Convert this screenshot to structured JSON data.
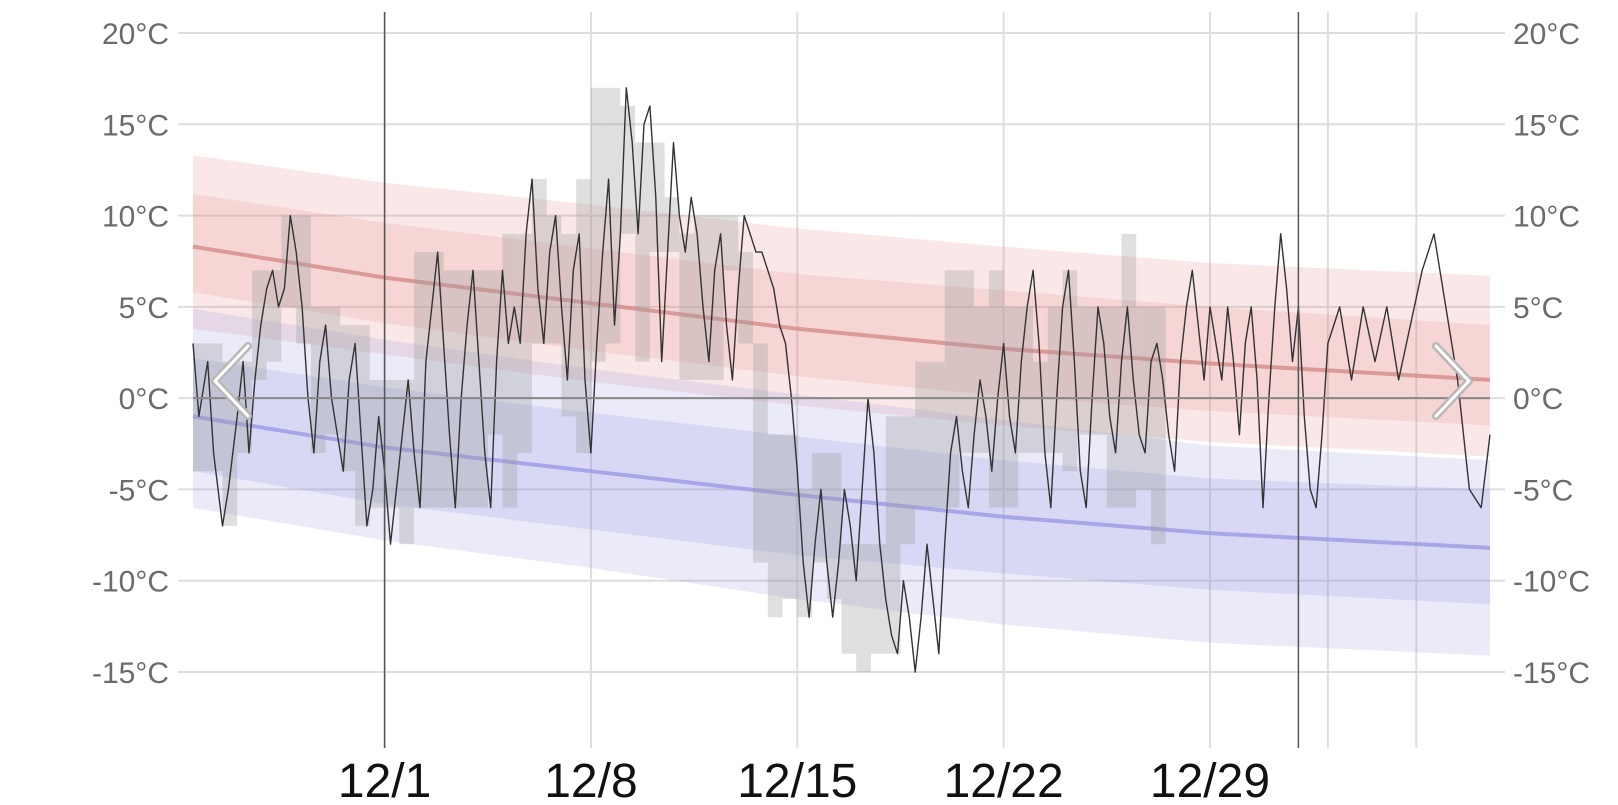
{
  "chart_data": {
    "type": "area",
    "title": "",
    "xlabel": "",
    "ylabel": "",
    "ylim": [
      -20,
      20
    ],
    "x_tick_labels": [
      "12/1",
      "12/8",
      "12/15",
      "12/22",
      "12/29"
    ],
    "x_tick_days": [
      0,
      7,
      14,
      21,
      28
    ],
    "x_range_days": [
      -6.5,
      37.5
    ],
    "y_ticks": [
      20,
      15,
      10,
      5,
      0,
      -5,
      -10,
      -15
    ],
    "y_tick_labels_left": [
      "20°C",
      "15°C",
      "10°C",
      "5°C",
      "0°C",
      "-5°C",
      "-10°C",
      "-15°C"
    ],
    "y_tick_labels_right": [
      "20°C",
      "15°C",
      "10°C",
      "5°C",
      "0°C",
      "-5°C",
      "-10°C",
      "-15°C"
    ],
    "grid": true,
    "colors": {
      "high_band": "#e57d7d",
      "high_mean": "#d68a8a",
      "low_band": "#8a8ae0",
      "low_mean": "#9a9ae6",
      "daily_range": "#9a9a9a",
      "temperature_line": "#333333",
      "axis_zero": "#888888",
      "grid": "#dddddd"
    },
    "normal_high": {
      "mean": [
        [
          -6.5,
          8.3
        ],
        [
          0,
          6.6
        ],
        [
          7,
          5.2
        ],
        [
          14,
          3.8
        ],
        [
          21,
          2.7
        ],
        [
          28,
          1.9
        ],
        [
          37.5,
          1.0
        ]
      ],
      "outer_upper": [
        [
          -6.5,
          13.3
        ],
        [
          0,
          11.8
        ],
        [
          7,
          10.6
        ],
        [
          14,
          9.3
        ],
        [
          21,
          8.3
        ],
        [
          28,
          7.4
        ],
        [
          37.5,
          6.7
        ]
      ],
      "outer_lower": [
        [
          -6.5,
          3.8
        ],
        [
          0,
          2.4
        ],
        [
          7,
          0.9
        ],
        [
          14,
          -0.4
        ],
        [
          21,
          -1.5
        ],
        [
          28,
          -2.4
        ],
        [
          37.5,
          -3.2
        ]
      ],
      "inner_upper": [
        [
          -6.5,
          11.2
        ],
        [
          0,
          9.6
        ],
        [
          7,
          8.2
        ],
        [
          14,
          6.8
        ],
        [
          21,
          5.9
        ],
        [
          28,
          5.0
        ],
        [
          37.5,
          4.0
        ]
      ],
      "inner_lower": [
        [
          -6.5,
          5.8
        ],
        [
          0,
          4.1
        ],
        [
          7,
          2.6
        ],
        [
          14,
          1.2
        ],
        [
          21,
          0.1
        ],
        [
          28,
          -0.7
        ],
        [
          37.5,
          -1.5
        ]
      ]
    },
    "normal_low": {
      "mean": [
        [
          -6.5,
          -1.0
        ],
        [
          0,
          -2.7
        ],
        [
          7,
          -4.0
        ],
        [
          14,
          -5.3
        ],
        [
          21,
          -6.5
        ],
        [
          28,
          -7.4
        ],
        [
          37.5,
          -8.2
        ]
      ],
      "outer_upper": [
        [
          -6.5,
          4.9
        ],
        [
          0,
          3.2
        ],
        [
          7,
          1.6
        ],
        [
          14,
          0.2
        ],
        [
          21,
          -1.2
        ],
        [
          28,
          -2.6
        ],
        [
          37.5,
          -3.4
        ]
      ],
      "outer_lower": [
        [
          -6.5,
          -6.0
        ],
        [
          0,
          -7.8
        ],
        [
          7,
          -9.3
        ],
        [
          14,
          -11.0
        ],
        [
          21,
          -12.4
        ],
        [
          28,
          -13.4
        ],
        [
          37.5,
          -14.1
        ]
      ],
      "inner_upper": [
        [
          -6.5,
          2.2
        ],
        [
          0,
          0.6
        ],
        [
          7,
          -0.8
        ],
        [
          14,
          -2.1
        ],
        [
          21,
          -3.4
        ],
        [
          28,
          -4.4
        ],
        [
          37.5,
          -5.0
        ]
      ],
      "inner_lower": [
        [
          -6.5,
          -4.0
        ],
        [
          0,
          -5.8
        ],
        [
          7,
          -7.2
        ],
        [
          14,
          -8.6
        ],
        [
          21,
          -9.6
        ],
        [
          28,
          -10.5
        ],
        [
          37.5,
          -11.3
        ]
      ]
    },
    "daily_range_blocks": [
      [
        -6.5,
        -5.5,
        -4,
        3
      ],
      [
        -5.5,
        -5.0,
        -7,
        2
      ],
      [
        -5.0,
        -4.5,
        -3,
        2
      ],
      [
        -4.5,
        -4.0,
        1,
        7
      ],
      [
        -4.0,
        -3.5,
        2,
        7
      ],
      [
        -3.5,
        -3.0,
        5,
        10
      ],
      [
        -3.0,
        -2.5,
        3,
        10
      ],
      [
        -2.5,
        -2.0,
        -3,
        5
      ],
      [
        -2.0,
        -1.5,
        -2,
        5
      ],
      [
        -1.5,
        -1.0,
        -4,
        4
      ],
      [
        -1.0,
        -0.5,
        -7,
        4
      ],
      [
        -0.5,
        0.5,
        -6,
        1
      ],
      [
        0.5,
        1.0,
        -8,
        1
      ],
      [
        1.0,
        2.0,
        -6,
        8
      ],
      [
        2.0,
        2.5,
        -6,
        7
      ],
      [
        2.5,
        3.5,
        -6,
        7
      ],
      [
        3.5,
        4.0,
        -2,
        7
      ],
      [
        4.0,
        4.5,
        -6,
        9
      ],
      [
        4.5,
        5.0,
        -3,
        9
      ],
      [
        5.0,
        5.5,
        3,
        12
      ],
      [
        5.5,
        6.0,
        3,
        10
      ],
      [
        6.0,
        6.5,
        -1,
        9
      ],
      [
        6.5,
        7.0,
        -3,
        12
      ],
      [
        7.0,
        7.5,
        2,
        17
      ],
      [
        7.5,
        8.0,
        3,
        17
      ],
      [
        8.0,
        8.5,
        9,
        16
      ],
      [
        8.5,
        9.0,
        2,
        14
      ],
      [
        9.0,
        9.5,
        8,
        14
      ],
      [
        9.5,
        10.0,
        8,
        11
      ],
      [
        10.0,
        10.5,
        1,
        9
      ],
      [
        10.5,
        11.0,
        1,
        10
      ],
      [
        11.0,
        11.5,
        1,
        10
      ],
      [
        11.5,
        12.0,
        7,
        10
      ],
      [
        12.0,
        12.5,
        3,
        8
      ],
      [
        12.5,
        13.0,
        -9,
        3
      ],
      [
        13.0,
        13.5,
        -12,
        -2
      ],
      [
        13.5,
        14.0,
        -11,
        -2
      ],
      [
        14.0,
        14.5,
        -12,
        -5
      ],
      [
        14.5,
        15.0,
        -9,
        -3
      ],
      [
        15.0,
        15.5,
        -11,
        -3
      ],
      [
        15.5,
        16.0,
        -14,
        -8
      ],
      [
        16.0,
        16.5,
        -15,
        -8
      ],
      [
        16.5,
        17.0,
        -14,
        -8
      ],
      [
        17.0,
        17.5,
        -14,
        -1
      ],
      [
        17.5,
        18.0,
        -8,
        -1
      ],
      [
        18.0,
        18.5,
        -6,
        2
      ],
      [
        18.5,
        19.0,
        -6,
        2
      ],
      [
        19.0,
        19.5,
        -6,
        7
      ],
      [
        19.5,
        20.0,
        -3,
        7
      ],
      [
        20.0,
        20.5,
        -3,
        5
      ],
      [
        20.5,
        21.0,
        -6,
        7
      ],
      [
        21.0,
        21.5,
        -6,
        5
      ],
      [
        21.5,
        22.0,
        -3,
        5
      ],
      [
        22.0,
        22.5,
        -3,
        2
      ],
      [
        22.5,
        23.0,
        -3,
        5
      ],
      [
        23.0,
        23.5,
        -4,
        7
      ],
      [
        23.5,
        24.0,
        -2,
        5
      ],
      [
        24.0,
        24.5,
        -2,
        5
      ],
      [
        24.5,
        25.0,
        -6,
        5
      ],
      [
        25.0,
        25.5,
        -6,
        9
      ],
      [
        25.5,
        26.0,
        -5,
        5
      ],
      [
        26.0,
        26.5,
        -8,
        5
      ]
    ],
    "temperature_series": [
      [
        -6.5,
        3
      ],
      [
        -6.3,
        -1
      ],
      [
        -6.0,
        2
      ],
      [
        -5.8,
        -3
      ],
      [
        -5.5,
        -7
      ],
      [
        -5.3,
        -5
      ],
      [
        -5.0,
        -1
      ],
      [
        -4.8,
        2
      ],
      [
        -4.6,
        -3
      ],
      [
        -4.4,
        1
      ],
      [
        -4.2,
        4
      ],
      [
        -4.0,
        6
      ],
      [
        -3.8,
        7
      ],
      [
        -3.6,
        5
      ],
      [
        -3.4,
        6
      ],
      [
        -3.2,
        10
      ],
      [
        -3.0,
        8
      ],
      [
        -2.8,
        5
      ],
      [
        -2.6,
        0
      ],
      [
        -2.4,
        -3
      ],
      [
        -2.2,
        2
      ],
      [
        -2.0,
        4
      ],
      [
        -1.8,
        0
      ],
      [
        -1.6,
        -2
      ],
      [
        -1.4,
        -4
      ],
      [
        -1.2,
        1
      ],
      [
        -1.0,
        3
      ],
      [
        -0.8,
        -2
      ],
      [
        -0.6,
        -7
      ],
      [
        -0.4,
        -5
      ],
      [
        -0.2,
        -1
      ],
      [
        0.0,
        -4
      ],
      [
        0.2,
        -8
      ],
      [
        0.4,
        -5
      ],
      [
        0.6,
        -2
      ],
      [
        0.8,
        1
      ],
      [
        1.0,
        -3
      ],
      [
        1.2,
        -6
      ],
      [
        1.4,
        2
      ],
      [
        1.6,
        5
      ],
      [
        1.8,
        8
      ],
      [
        2.0,
        3
      ],
      [
        2.2,
        -2
      ],
      [
        2.4,
        -6
      ],
      [
        2.6,
        0
      ],
      [
        2.8,
        4
      ],
      [
        3.0,
        7
      ],
      [
        3.2,
        2
      ],
      [
        3.4,
        -3
      ],
      [
        3.6,
        -6
      ],
      [
        3.8,
        2
      ],
      [
        4.0,
        7
      ],
      [
        4.2,
        3
      ],
      [
        4.4,
        5
      ],
      [
        4.6,
        3
      ],
      [
        4.8,
        9
      ],
      [
        5.0,
        12
      ],
      [
        5.2,
        6
      ],
      [
        5.4,
        3
      ],
      [
        5.6,
        8
      ],
      [
        5.8,
        10
      ],
      [
        6.0,
        5
      ],
      [
        6.2,
        1
      ],
      [
        6.4,
        7
      ],
      [
        6.6,
        9
      ],
      [
        6.8,
        1
      ],
      [
        7.0,
        -3
      ],
      [
        7.2,
        3
      ],
      [
        7.4,
        8
      ],
      [
        7.6,
        12
      ],
      [
        7.8,
        4
      ],
      [
        8.0,
        9
      ],
      [
        8.2,
        17
      ],
      [
        8.4,
        14
      ],
      [
        8.6,
        9
      ],
      [
        8.8,
        15
      ],
      [
        9.0,
        16
      ],
      [
        9.2,
        11
      ],
      [
        9.4,
        2
      ],
      [
        9.6,
        8
      ],
      [
        9.8,
        14
      ],
      [
        10.0,
        10
      ],
      [
        10.2,
        8
      ],
      [
        10.4,
        11
      ],
      [
        10.6,
        9
      ],
      [
        10.8,
        5
      ],
      [
        11.0,
        2
      ],
      [
        11.2,
        7
      ],
      [
        11.4,
        9
      ],
      [
        11.6,
        4
      ],
      [
        11.8,
        1
      ],
      [
        12.0,
        6
      ],
      [
        12.2,
        10
      ],
      [
        12.4,
        9
      ],
      [
        12.6,
        8
      ],
      [
        12.8,
        8
      ],
      [
        13.0,
        7
      ],
      [
        13.2,
        6
      ],
      [
        13.4,
        4
      ],
      [
        13.6,
        3
      ],
      [
        13.8,
        0
      ],
      [
        14.0,
        -4
      ],
      [
        14.2,
        -9
      ],
      [
        14.4,
        -12
      ],
      [
        14.6,
        -8
      ],
      [
        14.8,
        -5
      ],
      [
        15.0,
        -9
      ],
      [
        15.2,
        -12
      ],
      [
        15.4,
        -9
      ],
      [
        15.6,
        -5
      ],
      [
        15.8,
        -7
      ],
      [
        16.0,
        -10
      ],
      [
        16.2,
        -5
      ],
      [
        16.4,
        0
      ],
      [
        16.6,
        -3
      ],
      [
        16.8,
        -8
      ],
      [
        17.0,
        -11
      ],
      [
        17.2,
        -13
      ],
      [
        17.4,
        -14
      ],
      [
        17.6,
        -10
      ],
      [
        17.8,
        -12
      ],
      [
        18.0,
        -15
      ],
      [
        18.2,
        -12
      ],
      [
        18.4,
        -8
      ],
      [
        18.6,
        -11
      ],
      [
        18.8,
        -14
      ],
      [
        19.0,
        -8
      ],
      [
        19.2,
        -3
      ],
      [
        19.4,
        -1
      ],
      [
        19.6,
        -4
      ],
      [
        19.8,
        -6
      ],
      [
        20.0,
        -2
      ],
      [
        20.2,
        1
      ],
      [
        20.4,
        -1
      ],
      [
        20.6,
        -4
      ],
      [
        20.8,
        0
      ],
      [
        21.0,
        3
      ],
      [
        21.2,
        -1
      ],
      [
        21.4,
        -3
      ],
      [
        21.6,
        2
      ],
      [
        21.8,
        5
      ],
      [
        22.0,
        7
      ],
      [
        22.2,
        3
      ],
      [
        22.4,
        -3
      ],
      [
        22.6,
        -6
      ],
      [
        22.8,
        0
      ],
      [
        23.0,
        5
      ],
      [
        23.2,
        7
      ],
      [
        23.4,
        2
      ],
      [
        23.6,
        -4
      ],
      [
        23.8,
        -6
      ],
      [
        24.0,
        0
      ],
      [
        24.2,
        5
      ],
      [
        24.4,
        3
      ],
      [
        24.6,
        -1
      ],
      [
        24.8,
        -3
      ],
      [
        25.0,
        2
      ],
      [
        25.2,
        5
      ],
      [
        25.4,
        1
      ],
      [
        25.6,
        -2
      ],
      [
        25.8,
        -3
      ],
      [
        26.0,
        2
      ],
      [
        26.2,
        3
      ],
      [
        26.4,
        1
      ],
      [
        26.6,
        -2
      ],
      [
        26.8,
        -4
      ],
      [
        27.0,
        2
      ],
      [
        27.2,
        5
      ],
      [
        27.4,
        7
      ],
      [
        27.6,
        4
      ],
      [
        27.8,
        1
      ],
      [
        28.0,
        5
      ],
      [
        28.2,
        3
      ],
      [
        28.4,
        1
      ],
      [
        28.6,
        5
      ],
      [
        28.8,
        2
      ],
      [
        29.0,
        -2
      ],
      [
        29.2,
        3
      ],
      [
        29.4,
        5
      ],
      [
        29.6,
        1
      ],
      [
        29.8,
        -6
      ],
      [
        30.0,
        0
      ],
      [
        30.2,
        5
      ],
      [
        30.4,
        9
      ],
      [
        30.6,
        6
      ],
      [
        30.8,
        2
      ],
      [
        31.0,
        5
      ],
      [
        31.2,
        -1
      ],
      [
        31.4,
        -5
      ],
      [
        31.6,
        -6
      ],
      [
        31.8,
        -2
      ],
      [
        32.0,
        3
      ],
      [
        32.4,
        5
      ],
      [
        32.8,
        1
      ],
      [
        33.2,
        5
      ],
      [
        33.6,
        2
      ],
      [
        34.0,
        5
      ],
      [
        34.4,
        1
      ],
      [
        34.8,
        4
      ],
      [
        35.2,
        7
      ],
      [
        35.6,
        9
      ],
      [
        36.0,
        5
      ],
      [
        36.4,
        1
      ],
      [
        36.8,
        -5
      ],
      [
        37.2,
        -6
      ],
      [
        37.5,
        -2
      ]
    ],
    "series": [
      {
        "name": "",
        "values": []
      }
    ]
  },
  "navigation": {
    "prev_icon": "chevron-left-icon",
    "next_icon": "chevron-right-icon",
    "arrow_color": "#b8b8b8"
  }
}
